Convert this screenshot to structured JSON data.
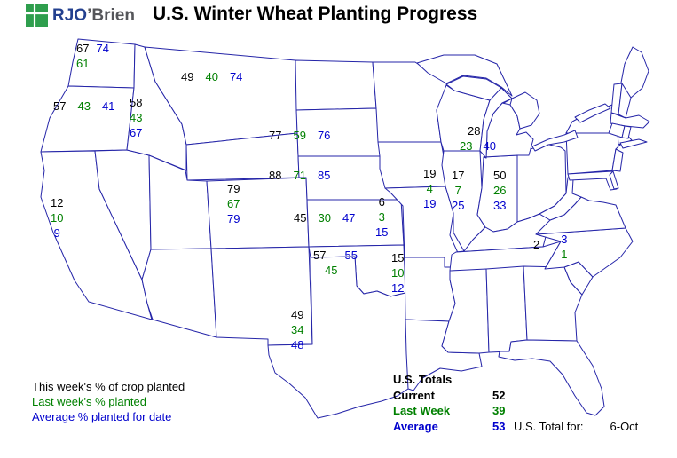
{
  "header": {
    "logo": {
      "rjo": "RJO",
      "brien": "’Brien"
    },
    "title": "U.S. Winter Wheat Planting Progress"
  },
  "colors": {
    "current": "#000000",
    "last_week": "#008000",
    "average": "#0000cd",
    "map_outline": "#2525a8",
    "logo_green": "#2e9e4d"
  },
  "legend": [
    {
      "id": "current",
      "label": "This week's % of crop planted"
    },
    {
      "id": "last_week",
      "label": "Last week's % planted"
    },
    {
      "id": "average",
      "label": "Average % planted for date"
    }
  ],
  "totals": {
    "heading": "U.S. Totals",
    "rows": [
      {
        "id": "current",
        "label": "Current",
        "value": "52"
      },
      {
        "id": "last_week",
        "label": "Last Week",
        "value": "39"
      },
      {
        "id": "average",
        "label": "Average",
        "value": "53"
      }
    ],
    "footer_label": "U.S. Total for:",
    "footer_date": "6-Oct"
  },
  "map": {
    "description": "U.S. map with winter wheat planting progress percentages by state",
    "states": [
      {
        "id": "wa",
        "name": "Washington",
        "current": "67",
        "last_week": "61",
        "average": "74"
      },
      {
        "id": "or",
        "name": "Oregon",
        "current": "57",
        "last_week": "43",
        "average": "41"
      },
      {
        "id": "ca",
        "name": "California",
        "current": "12",
        "last_week": "10",
        "average": "9"
      },
      {
        "id": "id",
        "name": "Idaho",
        "current": "58",
        "last_week": "43",
        "average": "67"
      },
      {
        "id": "mt",
        "name": "Montana",
        "current": "49",
        "last_week": "40",
        "average": "74"
      },
      {
        "id": "sd",
        "name": "South Dakota",
        "current": "77",
        "last_week": "59",
        "average": "76"
      },
      {
        "id": "ne",
        "name": "Nebraska",
        "current": "88",
        "last_week": "71",
        "average": "85"
      },
      {
        "id": "co",
        "name": "Colorado",
        "current": "79",
        "last_week": "67",
        "average": "79"
      },
      {
        "id": "ks",
        "name": "Kansas",
        "current": "45",
        "last_week": "30",
        "average": "47"
      },
      {
        "id": "ok",
        "name": "Oklahoma",
        "current": "57",
        "last_week": "45",
        "average": "55"
      },
      {
        "id": "tx",
        "name": "Texas",
        "current": "49",
        "last_week": "34",
        "average": "48"
      },
      {
        "id": "mo",
        "name": "Missouri",
        "current": "6",
        "last_week": "3",
        "average": "15"
      },
      {
        "id": "ar",
        "name": "Arkansas",
        "current": "15",
        "last_week": "10",
        "average": "12"
      },
      {
        "id": "il",
        "name": "Illinois",
        "current": "19",
        "last_week": "4",
        "average": "19"
      },
      {
        "id": "in",
        "name": "Indiana",
        "current": "17",
        "last_week": "7",
        "average": "25"
      },
      {
        "id": "oh",
        "name": "Ohio",
        "current": "50",
        "last_week": "26",
        "average": "33"
      },
      {
        "id": "mi",
        "name": "Michigan",
        "current": "28",
        "last_week": "23",
        "average": "40"
      },
      {
        "id": "nc",
        "name": "North Carolina",
        "current": "2",
        "last_week": "1",
        "average": "3"
      }
    ]
  }
}
